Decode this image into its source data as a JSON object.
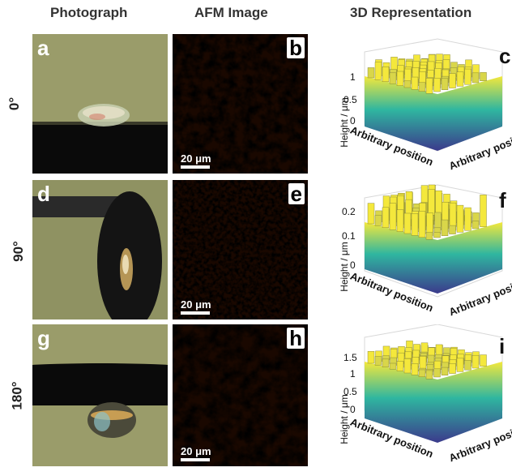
{
  "headers": {
    "photo": "Photograph",
    "afm": "AFM Image",
    "rep3d": "3D Representation"
  },
  "rows": [
    {
      "angle": "0°",
      "photo_label": "a",
      "afm_label": "b",
      "plot_label": "c",
      "scale_text": "20 μm",
      "y_axis": "Height / μm",
      "y_ticks": [
        "1",
        "0.5",
        "0"
      ],
      "x_axis_left": "Arbitrary position",
      "x_axis_right": "Arbitrary position"
    },
    {
      "angle": "90°",
      "photo_label": "d",
      "afm_label": "e",
      "plot_label": "f",
      "scale_text": "20 μm",
      "y_axis": "Height / μm",
      "y_ticks": [
        "0.2",
        "0.1",
        "0"
      ],
      "x_axis_left": "Arbitrary position",
      "x_axis_right": "Arbitrary position"
    },
    {
      "angle": "180°",
      "photo_label": "g",
      "afm_label": "h",
      "plot_label": "i",
      "scale_text": "20 μm",
      "y_axis": "Height / μm",
      "y_ticks": [
        "1.5",
        "1",
        "0.5",
        "0"
      ],
      "x_axis_left": "Arbitrary position",
      "x_axis_right": "Arbitrary position"
    }
  ],
  "colors": {
    "photo_bg": "#9a9c6a",
    "afm_dark": "#1a0800",
    "afm_bright": "#ffcf70",
    "bar_low": "#3b3a8c",
    "bar_mid": "#2fb6a0",
    "bar_high": "#f4e83c"
  }
}
